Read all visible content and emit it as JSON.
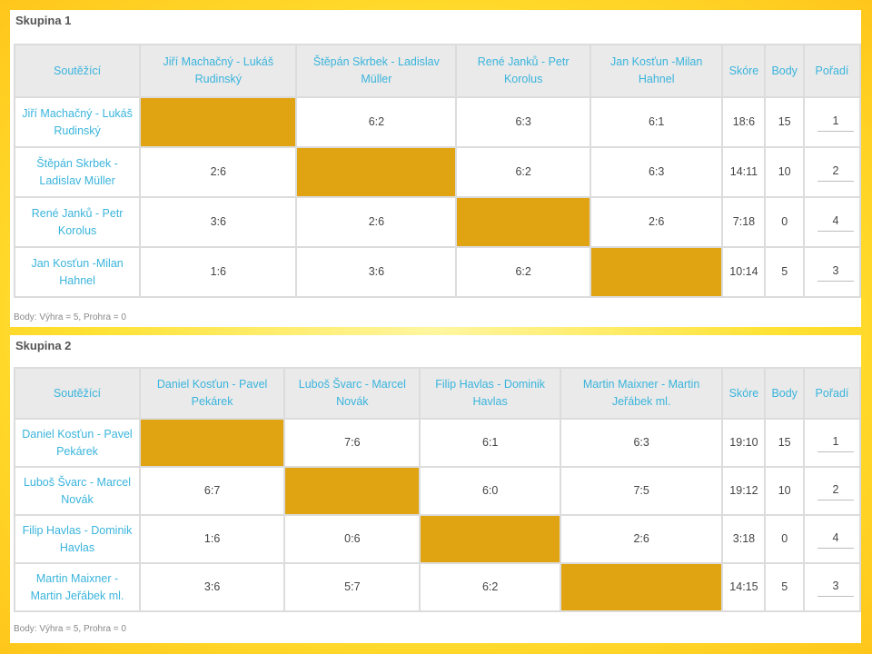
{
  "groups": [
    {
      "title": "Skupina 1",
      "headers": {
        "competitors": "Soutěžící",
        "opponents": [
          "Jiří Machačný - Lukáš Rudinský",
          "Štěpán Skrbek - Ladislav Müller",
          "René Janků - Petr Korolus",
          "Jan Kosťun -Milan Hahnel"
        ],
        "score": "Skóre",
        "points": "Body",
        "rank": "Pořadí"
      },
      "rows": [
        {
          "name": "Jiří Machačný - Lukáš Rudinský",
          "results": [
            "",
            "6:2",
            "6:3",
            "6:1"
          ],
          "score": "18:6",
          "points": "15",
          "rank": "1"
        },
        {
          "name": "Štěpán Skrbek - Ladislav Müller",
          "results": [
            "2:6",
            "",
            "6:2",
            "6:3"
          ],
          "score": "14:11",
          "points": "10",
          "rank": "2"
        },
        {
          "name": "René Janků - Petr Korolus",
          "results": [
            "3:6",
            "2:6",
            "",
            "2:6"
          ],
          "score": "7:18",
          "points": "0",
          "rank": "4"
        },
        {
          "name": "Jan Kosťun -Milan Hahnel",
          "results": [
            "1:6",
            "3:6",
            "6:2",
            ""
          ],
          "score": "10:14",
          "points": "5",
          "rank": "3"
        }
      ],
      "note": "Body: Výhra = 5, Prohra = 0"
    },
    {
      "title": "Skupina 2",
      "headers": {
        "competitors": "Soutěžící",
        "opponents": [
          "Daniel Kosťun - Pavel Pekárek",
          "Luboš Švarc - Marcel Novák",
          "Filip Havlas - Dominik Havlas",
          "Martin Maixner - Martin Jeřábek ml."
        ],
        "score": "Skóre",
        "points": "Body",
        "rank": "Pořadí"
      },
      "rows": [
        {
          "name": "Daniel Kosťun - Pavel Pekárek",
          "results": [
            "",
            "7:6",
            "6:1",
            "6:3"
          ],
          "score": "19:10",
          "points": "15",
          "rank": "1"
        },
        {
          "name": "Luboš Švarc - Marcel Novák",
          "results": [
            "6:7",
            "",
            "6:0",
            "7:5"
          ],
          "score": "19:12",
          "points": "10",
          "rank": "2"
        },
        {
          "name": "Filip Havlas - Dominik Havlas",
          "results": [
            "1:6",
            "0:6",
            "",
            "2:6"
          ],
          "score": "3:18",
          "points": "0",
          "rank": "4"
        },
        {
          "name": "Martin Maixner - Martin Jeřábek ml.",
          "results": [
            "3:6",
            "5:7",
            "6:2",
            ""
          ],
          "score": "14:15",
          "points": "5",
          "rank": "3"
        }
      ],
      "note": "Body: Výhra = 5, Prohra = 0"
    }
  ],
  "colors": {
    "accent_text": "#3ab4dc",
    "self_cell": "#e0a412",
    "header_bg": "#eaeaea",
    "background": "#ffe233"
  }
}
